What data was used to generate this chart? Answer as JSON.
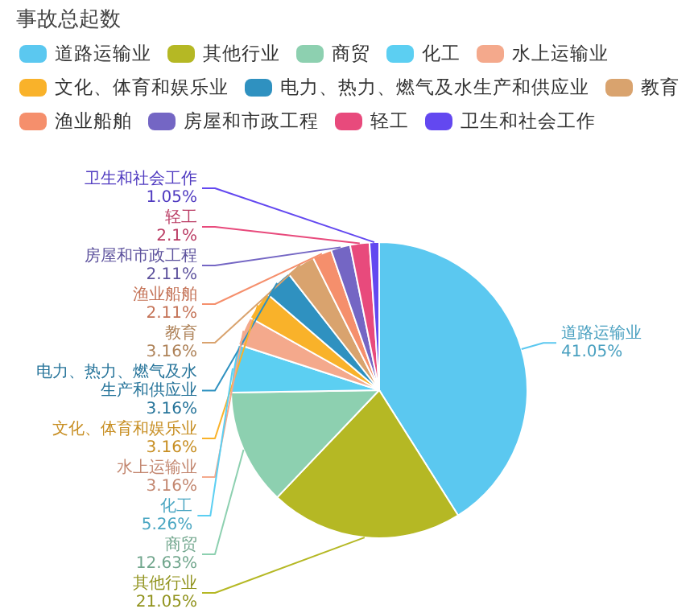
{
  "chart_data": {
    "type": "pie",
    "title": "事故总起数",
    "categories": [
      "道路运输业",
      "其他行业",
      "商贸",
      "化工",
      "水上运输业",
      "文化、体育和娱乐业",
      "电力、热力、燃气及水生产和供应业",
      "教育",
      "渔业船舶",
      "房屋和市政工程",
      "轻工",
      "卫生和社会工作"
    ],
    "values": [
      41.05,
      21.05,
      12.63,
      5.26,
      3.16,
      3.16,
      3.16,
      3.16,
      2.11,
      2.11,
      2.1,
      1.05
    ],
    "value_labels": [
      "41.05%",
      "21.05%",
      "12.63%",
      "5.26%",
      "3.16%",
      "3.16%",
      "3.16%",
      "3.16%",
      "2.11%",
      "2.11%",
      "2.1%",
      "1.05%"
    ],
    "colors": [
      "#5bc8f0",
      "#b5b824",
      "#8dd0b0",
      "#5ccff2",
      "#f4a98c",
      "#f9b22a",
      "#2f91c0",
      "#d9a36e",
      "#f58f6c",
      "#7466c4",
      "#e84a7c",
      "#6348f0"
    ],
    "legend": "top left"
  }
}
